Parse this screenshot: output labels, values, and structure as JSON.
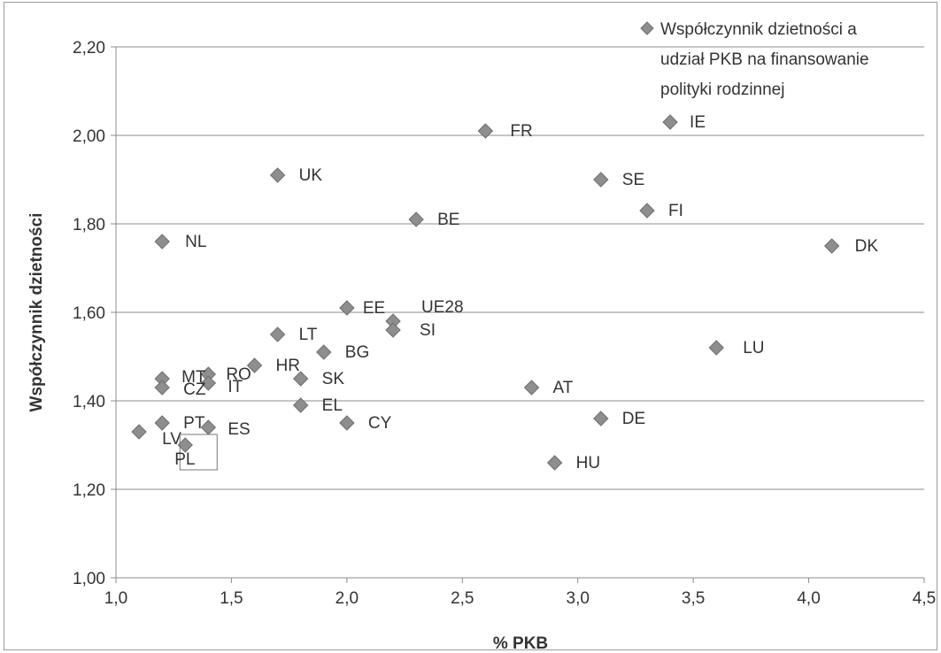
{
  "chart_data": {
    "type": "scatter",
    "xlabel": "% PKB",
    "ylabel": "Współczynnik dzietności",
    "xlim": [
      1.0,
      4.5
    ],
    "ylim": [
      1.0,
      2.2
    ],
    "x_ticks": [
      "1,0",
      "1,5",
      "2,0",
      "2,5",
      "3,0",
      "3,5",
      "4,0",
      "4,5"
    ],
    "y_ticks": [
      "1,00",
      "1,20",
      "1,40",
      "1,60",
      "1,80",
      "2,00",
      "2,20"
    ],
    "grid": "horizontal",
    "legend": {
      "position": "top-right",
      "lines": [
        "Współczynnik dzietności a",
        "udział PKB na finansowanie",
        "polityki rodzinnej"
      ]
    },
    "highlighted": "PL",
    "points": [
      {
        "label": "FR",
        "x": 2.6,
        "y": 2.01
      },
      {
        "label": "IE",
        "x": 3.4,
        "y": 2.03
      },
      {
        "label": "UK",
        "x": 1.7,
        "y": 1.91
      },
      {
        "label": "SE",
        "x": 3.1,
        "y": 1.9
      },
      {
        "label": "FI",
        "x": 3.3,
        "y": 1.83
      },
      {
        "label": "BE",
        "x": 2.3,
        "y": 1.81
      },
      {
        "label": "NL",
        "x": 1.2,
        "y": 1.76
      },
      {
        "label": "DK",
        "x": 4.1,
        "y": 1.75
      },
      {
        "label": "EE",
        "x": 2.0,
        "y": 1.61
      },
      {
        "label": "UE28",
        "x": 2.2,
        "y": 1.58
      },
      {
        "label": "SI",
        "x": 2.2,
        "y": 1.56
      },
      {
        "label": "LT",
        "x": 1.7,
        "y": 1.55
      },
      {
        "label": "LU",
        "x": 3.6,
        "y": 1.52
      },
      {
        "label": "BG",
        "x": 1.9,
        "y": 1.51
      },
      {
        "label": "HR",
        "x": 1.6,
        "y": 1.48
      },
      {
        "label": "RO",
        "x": 1.4,
        "y": 1.46
      },
      {
        "label": "MT",
        "x": 1.2,
        "y": 1.45
      },
      {
        "label": "SK",
        "x": 1.8,
        "y": 1.45
      },
      {
        "label": "IT",
        "x": 1.4,
        "y": 1.44
      },
      {
        "label": "CZ",
        "x": 1.2,
        "y": 1.43
      },
      {
        "label": "AT",
        "x": 2.8,
        "y": 1.43
      },
      {
        "label": "EL",
        "x": 1.8,
        "y": 1.39
      },
      {
        "label": "DE",
        "x": 3.1,
        "y": 1.36
      },
      {
        "label": "CY",
        "x": 2.0,
        "y": 1.35
      },
      {
        "label": "PT",
        "x": 1.2,
        "y": 1.35
      },
      {
        "label": "ES",
        "x": 1.4,
        "y": 1.34
      },
      {
        "label": "LV",
        "x": 1.1,
        "y": 1.33
      },
      {
        "label": "PL",
        "x": 1.3,
        "y": 1.3
      },
      {
        "label": "HU",
        "x": 2.9,
        "y": 1.26
      }
    ]
  }
}
